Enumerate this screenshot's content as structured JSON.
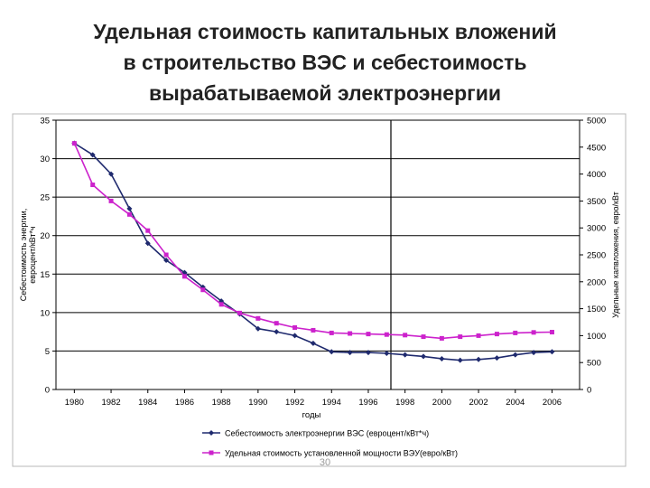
{
  "slide": {
    "title_lines": [
      "Удельная стоимость капитальных  вложений",
      "в строительство ВЭС и себестоимость",
      "вырабатываемой электроэнергии"
    ],
    "page_number": "30"
  },
  "chart_data": {
    "type": "line",
    "x": [
      1980,
      1982,
      1983,
      1984,
      1986,
      1988,
      1990,
      1992,
      1994,
      1996,
      1998,
      2000,
      2002,
      2004,
      2006
    ],
    "xlabel": "годы",
    "xlim": [
      1979,
      2007.5
    ],
    "x_ticks": [
      "1980",
      "1982",
      "1984",
      "1986",
      "1988",
      "1990",
      "1992",
      "1994",
      "1996",
      "1998",
      "2000",
      "2002",
      "2004",
      "2006"
    ],
    "y_left": {
      "label_lines": [
        "Себестоимость энергии,",
        "евроцент/кВт*ч"
      ],
      "ylim": [
        0,
        35
      ],
      "ticks": [
        "0",
        "5",
        "10",
        "15",
        "20",
        "25",
        "30",
        "35"
      ]
    },
    "y_right": {
      "label": "Удельные капвложения, евро/кВт",
      "ylim": [
        0,
        5000
      ],
      "ticks": [
        "0",
        "500",
        "1000",
        "1500",
        "2000",
        "2500",
        "3000",
        "3500",
        "4000",
        "4500",
        "5000"
      ]
    },
    "grid": "horizontal",
    "legend_position": "bottom",
    "series": [
      {
        "name": "Себестоимость электроэнергии ВЭС (евроцент/кВт*ч)",
        "axis": "left",
        "color": "#1f2a6e",
        "marker": "diamond",
        "x": [
          1980,
          1981,
          1982,
          1983,
          1984,
          1985,
          1986,
          1987,
          1988,
          1989,
          1990,
          1991,
          1992,
          1993,
          1994,
          1995,
          1996,
          1997,
          1998,
          1999,
          2000,
          2001,
          2002,
          2003,
          2004,
          2005,
          2006
        ],
        "values": [
          32,
          30.5,
          28,
          23.5,
          19,
          16.8,
          15.2,
          13.3,
          11.5,
          9.8,
          7.9,
          7.5,
          7.0,
          6.0,
          4.9,
          4.8,
          4.8,
          4.7,
          4.5,
          4.3,
          4.0,
          3.8,
          3.9,
          4.1,
          4.5,
          4.8,
          4.9
        ]
      },
      {
        "name": "Удельная стоимость установленной мощности ВЭУ(евро/кВт)",
        "axis": "right",
        "color": "#cc22cc",
        "marker": "square",
        "x": [
          1980,
          1981,
          1982,
          1983,
          1984,
          1985,
          1986,
          1987,
          1988,
          1989,
          1990,
          1991,
          1992,
          1993,
          1994,
          1995,
          1996,
          1997,
          1998,
          1999,
          2000,
          2001,
          2002,
          2003,
          2004,
          2005,
          2006
        ],
        "values": [
          4570,
          3800,
          3500,
          3250,
          2950,
          2500,
          2100,
          1850,
          1580,
          1420,
          1320,
          1230,
          1150,
          1100,
          1050,
          1040,
          1030,
          1020,
          1010,
          980,
          950,
          980,
          1000,
          1030,
          1050,
          1060,
          1065
        ]
      }
    ]
  }
}
